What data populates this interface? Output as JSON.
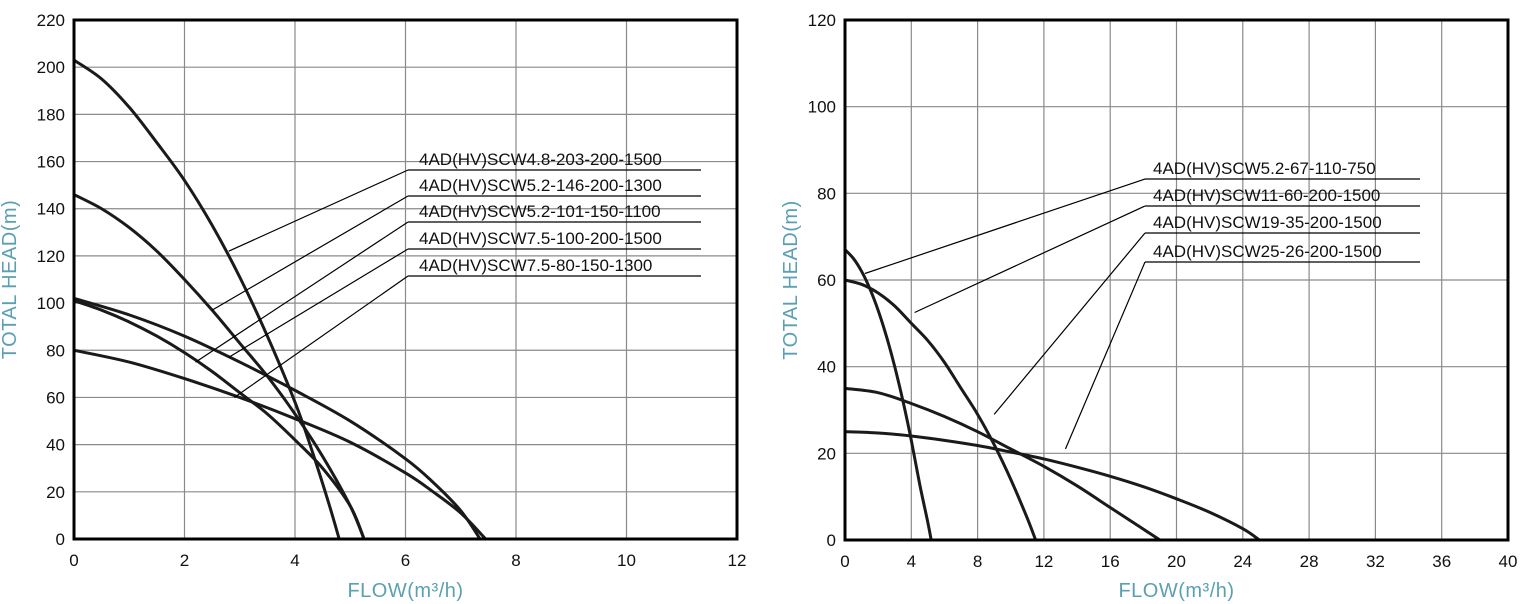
{
  "chart_data": [
    {
      "type": "line",
      "xlabel": "FLOW(m³/h)",
      "ylabel": "TOTAL HEAD(m)",
      "xlim": [
        0,
        12
      ],
      "ylim": [
        0,
        220
      ],
      "xticks": [
        0,
        2,
        4,
        6,
        8,
        10,
        12
      ],
      "yticks": [
        0,
        20,
        40,
        60,
        80,
        100,
        120,
        140,
        160,
        180,
        200,
        220
      ],
      "grid": true,
      "series": [
        {
          "name": "4AD(HV)SCW4.8-203-200-1500",
          "x": [
            0,
            0.5,
            1,
            1.5,
            2,
            2.5,
            3,
            3.5,
            4,
            4.3,
            4.6,
            4.8
          ],
          "y": [
            203,
            195,
            183,
            168,
            152,
            133,
            111,
            86,
            58,
            38,
            16,
            0
          ]
        },
        {
          "name": "4AD(HV)SCW5.2-146-200-1300",
          "x": [
            0,
            0.5,
            1,
            1.5,
            2,
            2.5,
            3,
            3.5,
            4,
            4.5,
            5,
            5.25
          ],
          "y": [
            146,
            140,
            132,
            122,
            110,
            97,
            83,
            69,
            53,
            35,
            14,
            0
          ]
        },
        {
          "name": "4AD(HV)SCW5.2-101-150-1100",
          "x": [
            0,
            0.5,
            1,
            1.5,
            2,
            2.5,
            3,
            3.5,
            4,
            4.5,
            5,
            5.25
          ],
          "y": [
            101,
            97,
            92,
            86,
            79,
            71,
            62,
            53,
            42,
            30,
            14,
            0
          ]
        },
        {
          "name": "4AD(HV)SCW7.5-100-200-1500",
          "x": [
            0,
            1,
            2,
            3,
            4,
            5,
            6,
            6.5,
            7,
            7.35
          ],
          "y": [
            102,
            95,
            86,
            75,
            63,
            50,
            34,
            24,
            12,
            0
          ]
        },
        {
          "name": "4AD(HV)SCW7.5-80-150-1300",
          "x": [
            0,
            1,
            2,
            3,
            4,
            5,
            6,
            6.5,
            7,
            7.45
          ],
          "y": [
            80,
            75,
            68,
            60,
            51,
            41,
            28,
            20,
            11,
            0
          ]
        }
      ]
    },
    {
      "type": "line",
      "xlabel": "FLOW(m³/h)",
      "ylabel": "TOTAL HEAD(m)",
      "xlim": [
        0,
        40
      ],
      "ylim": [
        0,
        120
      ],
      "xticks": [
        0,
        4,
        8,
        12,
        16,
        20,
        24,
        28,
        32,
        36,
        40
      ],
      "yticks": [
        0,
        20,
        40,
        60,
        80,
        100,
        120
      ],
      "grid": true,
      "series": [
        {
          "name": "4AD(HV)SCW5.2-67-110-750",
          "x": [
            0,
            0.5,
            1,
            1.5,
            2,
            2.5,
            3,
            3.5,
            4,
            4.5,
            5,
            5.2
          ],
          "y": [
            67,
            65,
            62,
            58,
            53,
            47,
            40,
            32,
            23,
            13,
            4,
            0
          ]
        },
        {
          "name": "4AD(HV)SCW11-60-200-1500",
          "x": [
            0,
            1,
            2,
            3,
            4,
            5,
            6,
            7,
            8,
            9,
            10,
            11,
            11.5
          ],
          "y": [
            60,
            59,
            57,
            54,
            50,
            46,
            41,
            35,
            29,
            22,
            14,
            5,
            0
          ]
        },
        {
          "name": "4AD(HV)SCW19-35-200-1500",
          "x": [
            0,
            2,
            4,
            6,
            8,
            10,
            12,
            14,
            16,
            18,
            19
          ],
          "y": [
            35,
            34,
            31.5,
            28.5,
            25,
            21,
            17,
            12.5,
            7.5,
            2.5,
            0
          ]
        },
        {
          "name": "4AD(HV)SCW25-26-200-1500",
          "x": [
            0,
            2,
            4,
            6,
            8,
            10,
            12,
            14,
            16,
            18,
            20,
            22,
            24,
            25
          ],
          "y": [
            25,
            24.7,
            24,
            23,
            21.8,
            20.3,
            18.7,
            16.8,
            14.7,
            12.3,
            9.5,
            6.4,
            2.6,
            0
          ]
        }
      ]
    }
  ]
}
